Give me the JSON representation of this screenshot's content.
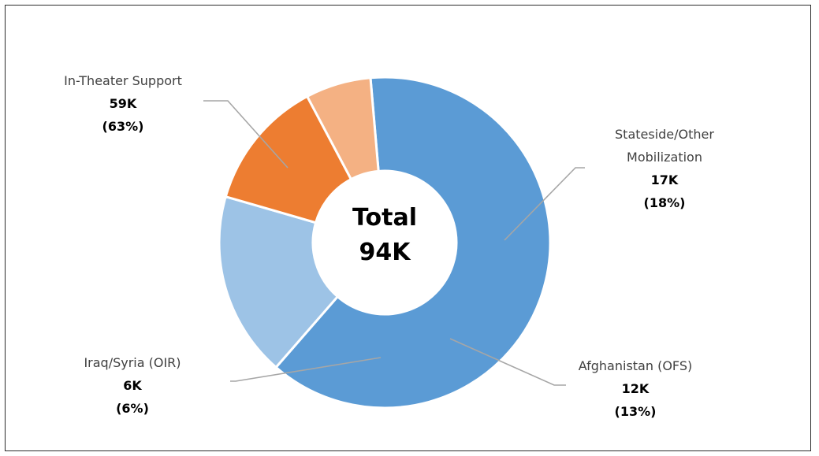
{
  "chart_data": {
    "type": "pie",
    "variant": "donut",
    "center_label": [
      "Total",
      "94K"
    ],
    "slices": [
      {
        "name": "In-Theater Support",
        "label_lines": [
          "In-Theater Support"
        ],
        "value": 59,
        "value_label": "59K",
        "percent_label": "(63%)",
        "color": "#5b9bd5"
      },
      {
        "name": "Stateside/Other Mobilization",
        "label_lines": [
          "Stateside/Other",
          "Mobilization"
        ],
        "value": 17,
        "value_label": "17K",
        "percent_label": "(18%)",
        "color": "#9dc3e6"
      },
      {
        "name": "Afghanistan (OFS)",
        "label_lines": [
          "Afghanistan (OFS)"
        ],
        "value": 12,
        "value_label": "12K",
        "percent_label": "(13%)",
        "color": "#ed7d31"
      },
      {
        "name": "Iraq/Syria (OIR)",
        "label_lines": [
          "Iraq/Syria (OIR)"
        ],
        "value": 6,
        "value_label": "6K",
        "percent_label": "(6%)",
        "color": "#f4b183"
      }
    ],
    "start_slice": "In-Theater Support",
    "unit": "K"
  }
}
